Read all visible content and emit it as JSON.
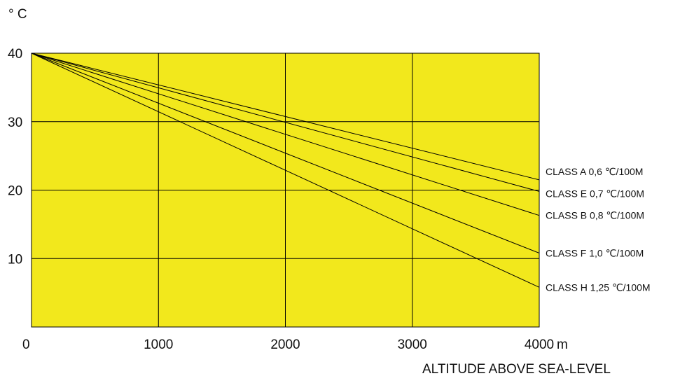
{
  "chart_data": {
    "type": "line",
    "x": [
      0,
      4000
    ],
    "xlim": [
      0,
      4000
    ],
    "ylim": [
      0,
      40
    ],
    "xticks": [
      0,
      1000,
      2000,
      3000,
      4000
    ],
    "yticks": [
      10,
      20,
      30,
      40
    ],
    "x_tick_labels": [
      "0",
      "1000",
      "2000",
      "3000",
      "4000"
    ],
    "y_tick_labels": [
      "10",
      "20",
      "30",
      "40"
    ],
    "x_unit": "m",
    "xlabel": "ALTITUDE ABOVE SEA-LEVEL",
    "ylabel": "° C",
    "grid": true,
    "series": [
      {
        "name": "CLASS A 0,6  ℃/100M",
        "values": [
          40,
          21.5
        ]
      },
      {
        "name": "CLASS E 0,7  ℃/100M",
        "values": [
          40,
          19.8
        ]
      },
      {
        "name": "CLASS B 0,8  ℃/100M",
        "values": [
          40,
          16.3
        ]
      },
      {
        "name": "CLASS F 1,0  ℃/100M",
        "values": [
          40,
          10.8
        ]
      },
      {
        "name": "CLASS H 1,25  ℃/100M",
        "values": [
          40,
          5.8
        ]
      }
    ],
    "colors": {
      "plot_background": "#f2e81c",
      "lines": "#000000"
    }
  }
}
